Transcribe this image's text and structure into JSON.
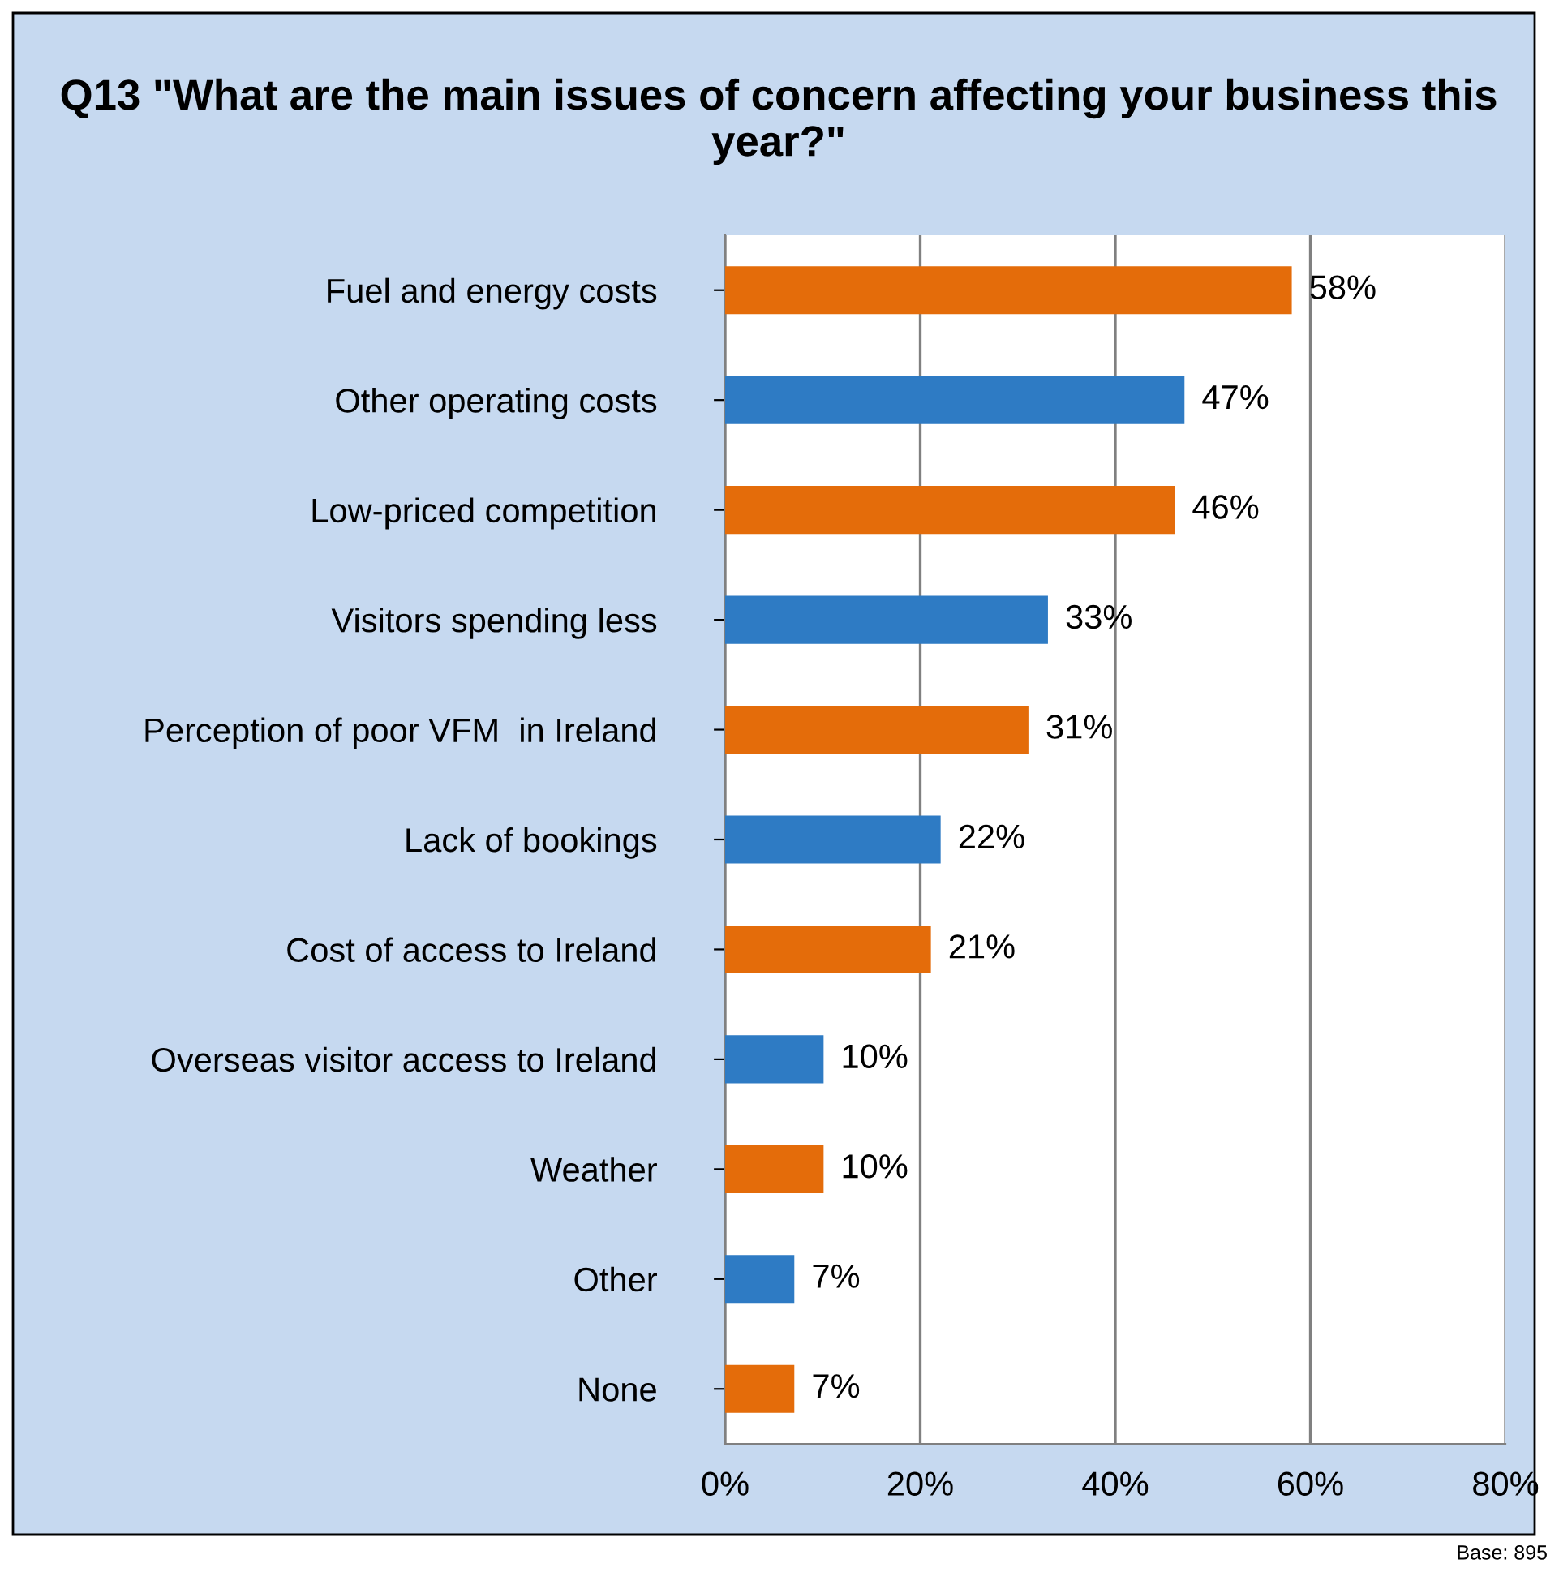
{
  "chart_data": {
    "type": "bar",
    "orientation": "horizontal",
    "title": "Q13 \"What are the main issues of concern affecting your business this year?\"",
    "categories": [
      "Fuel and energy costs",
      "Other operating costs",
      "Low-priced competition",
      "Visitors spending less",
      "Perception of poor VFM  in Ireland",
      "Lack of bookings",
      "Cost of access to Ireland",
      "Overseas visitor access to Ireland",
      "Weather",
      "Other",
      "None"
    ],
    "values": [
      58,
      47,
      46,
      33,
      31,
      22,
      21,
      10,
      10,
      7,
      7
    ],
    "colors": [
      "#e46c0a",
      "#2e7bc4",
      "#e46c0a",
      "#2e7bc4",
      "#e46c0a",
      "#2e7bc4",
      "#e46c0a",
      "#2e7bc4",
      "#e46c0a",
      "#2e7bc4",
      "#e46c0a"
    ],
    "value_labels": [
      "58%",
      "47%",
      "46%",
      "33%",
      "31%",
      "22%",
      "21%",
      "10%",
      "10%",
      "7%",
      "7%"
    ],
    "xlim": [
      0,
      80
    ],
    "xticks": [
      {
        "value": 0,
        "label": "0%"
      },
      {
        "value": 20,
        "label": "20%"
      },
      {
        "value": 40,
        "label": "40%"
      },
      {
        "value": 60,
        "label": "60%"
      },
      {
        "value": 80,
        "label": "80%"
      }
    ],
    "grid": "x",
    "annotations": [
      "Base: 895"
    ]
  }
}
